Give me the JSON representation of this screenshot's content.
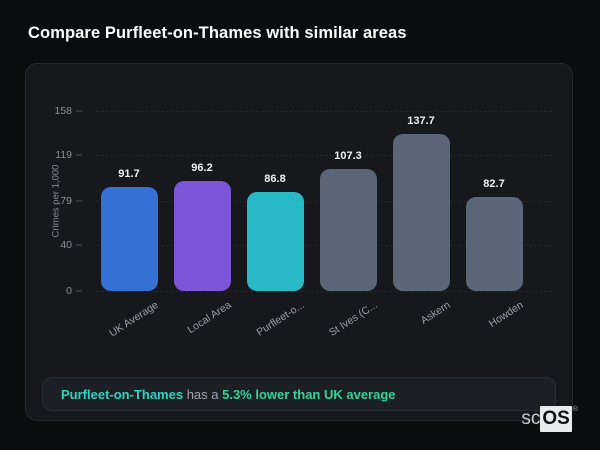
{
  "page": {
    "title": "Compare Purfleet-on-Thames with similar areas"
  },
  "chart_data": {
    "type": "bar",
    "title": "",
    "xlabel": "",
    "ylabel": "Crimes per 1,000",
    "categories": [
      "UK Average",
      "Local Area",
      "Purfleet-o...",
      "St Ives (C...",
      "Askern",
      "Howden"
    ],
    "values": [
      91.7,
      96.2,
      86.8,
      107.3,
      137.7,
      82.7
    ],
    "bar_colors": [
      "#3671d6",
      "#7d55d8",
      "#27b9c6",
      "#5b6778",
      "#5b6778",
      "#5b6778"
    ],
    "yticks": [
      0,
      40,
      79,
      119,
      158
    ],
    "ylim": [
      0,
      158
    ],
    "grid": "dashed-horizontal",
    "legend": "none",
    "value_labels": "above-bars"
  },
  "summary": {
    "area_name": "Purfleet-on-Thames",
    "connector": " has a ",
    "comparison": "5.3% lower than UK average",
    "area_color": "#2dd4bf",
    "connector_color": "#9ca3af",
    "comparison_color": "#34d399"
  },
  "watermark": {
    "prefix": "sc",
    "suffix": "OS",
    "registered": "®"
  }
}
